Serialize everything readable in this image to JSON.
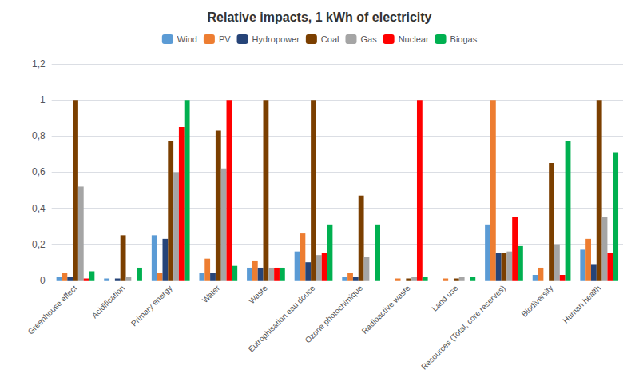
{
  "chart_data": {
    "type": "bar",
    "title": "Relative impacts, 1 kWh of electricity",
    "categories": [
      "Greenhouse effect",
      "Acidification",
      "Primary energy",
      "Water",
      "Waste",
      "Eutrophisation eau douce",
      "Ozone photochimique",
      "Radioactive waste",
      "Land use",
      "Resources (Total, core reserves)",
      "Biodiversity",
      "Human health"
    ],
    "series": [
      {
        "name": "Wind",
        "color": "#5B9BD5",
        "values": [
          0.02,
          0.01,
          0.25,
          0.04,
          0.07,
          0.16,
          0.02,
          0.0,
          0.0,
          0.31,
          0.03,
          0.17
        ]
      },
      {
        "name": "PV",
        "color": "#ED7D31",
        "values": [
          0.04,
          0.0,
          0.04,
          0.12,
          0.11,
          0.26,
          0.04,
          0.01,
          0.01,
          1.0,
          0.07,
          0.23
        ]
      },
      {
        "name": "Hydropower",
        "color": "#264478",
        "values": [
          0.02,
          0.01,
          0.23,
          0.04,
          0.07,
          0.1,
          0.02,
          0.0,
          0.0,
          0.15,
          0.0,
          0.09
        ]
      },
      {
        "name": "Coal",
        "color": "#7B3F00",
        "values": [
          1.0,
          0.25,
          0.77,
          0.83,
          1.0,
          1.0,
          0.47,
          0.01,
          0.01,
          0.15,
          0.65,
          1.0
        ]
      },
      {
        "name": "Gas",
        "color": "#A5A5A5",
        "values": [
          0.52,
          0.02,
          0.6,
          0.62,
          0.07,
          0.14,
          0.13,
          0.02,
          0.02,
          0.16,
          0.2,
          0.35
        ]
      },
      {
        "name": "Nuclear",
        "color": "#FF0000",
        "values": [
          0.01,
          0.0,
          0.85,
          1.0,
          0.07,
          0.15,
          0.0,
          1.0,
          0.0,
          0.35,
          0.03,
          0.15
        ]
      },
      {
        "name": "Biogas",
        "color": "#00B050",
        "values": [
          0.05,
          0.07,
          1.0,
          0.08,
          0.07,
          0.31,
          0.31,
          0.02,
          0.02,
          0.19,
          0.77,
          0.71
        ]
      }
    ],
    "ylim": [
      0,
      1.2
    ],
    "yticks": [
      0,
      {
        "value": 0.2,
        "label": "0,2"
      },
      {
        "value": 0.4,
        "label": "0,4"
      },
      {
        "value": 0.6,
        "label": "0,6"
      },
      {
        "value": 0.8,
        "label": "0,8"
      },
      1,
      {
        "value": 1.2,
        "label": "1,2"
      }
    ],
    "grid": true,
    "legend": "top"
  }
}
